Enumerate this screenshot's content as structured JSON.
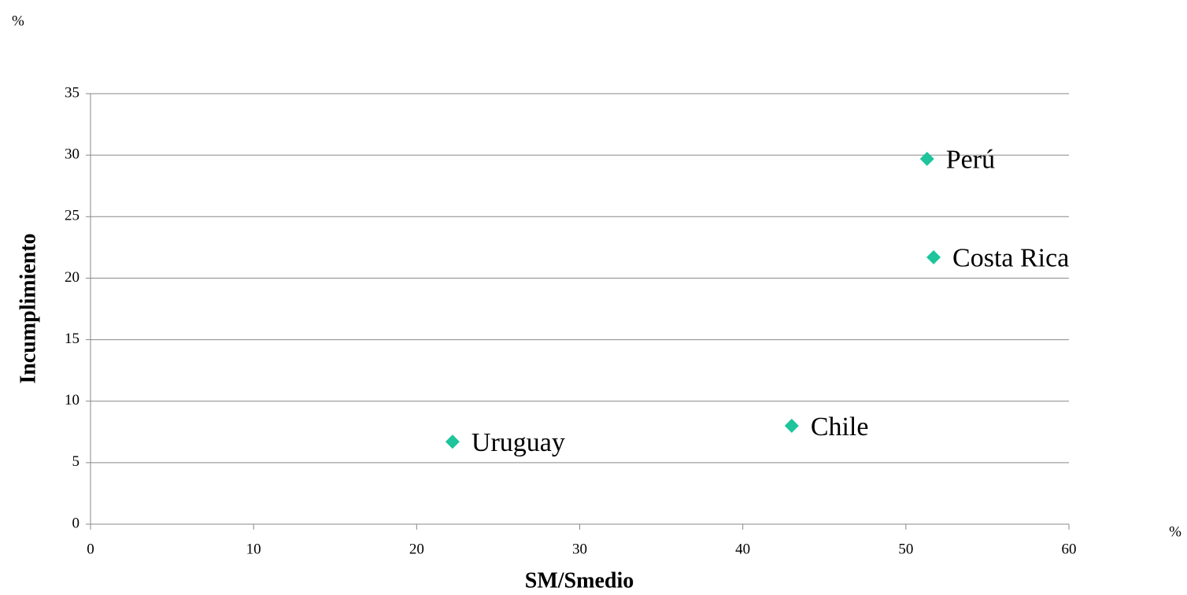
{
  "chart_data": {
    "type": "scatter",
    "x_label": "SM/Smedio",
    "y_label": "Incumplimiento",
    "x_unit": "%",
    "y_unit": "%",
    "series": [
      {
        "name": null,
        "color": "#1dc49c",
        "labels": [
          "Perú",
          "Costa Rica",
          "Chile",
          "Uruguay"
        ],
        "x": [
          51.3,
          51.7,
          43.0,
          22.2
        ],
        "values": [
          29.7,
          21.7,
          8.0,
          6.7
        ]
      }
    ],
    "xlim": [
      0,
      60
    ],
    "xticks": [
      0,
      10,
      20,
      30,
      40,
      50,
      60
    ],
    "ylim": [
      0,
      35
    ],
    "yticks": [
      0,
      5,
      10,
      15,
      20,
      25,
      30,
      35
    ],
    "grid": true
  }
}
